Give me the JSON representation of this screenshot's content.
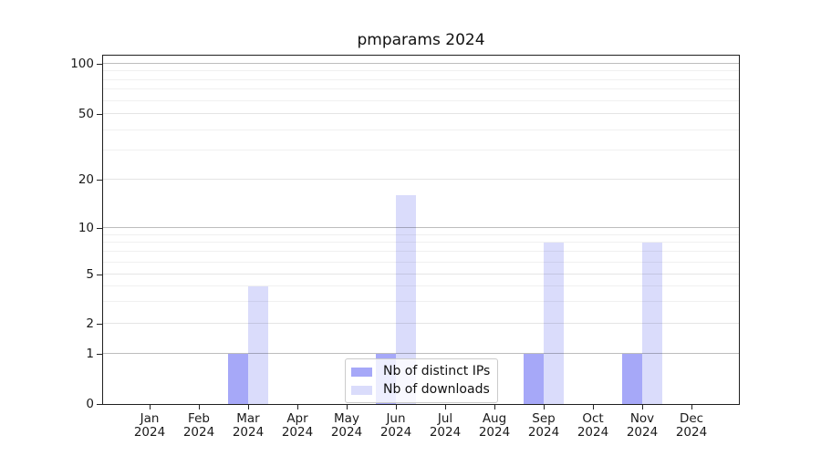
{
  "chart_data": {
    "type": "bar",
    "title": "pmparams 2024",
    "categories": [
      "Jan",
      "Feb",
      "Mar",
      "Apr",
      "May",
      "Jun",
      "Jul",
      "Aug",
      "Sep",
      "Oct",
      "Nov",
      "Dec"
    ],
    "year_label": "2024",
    "series": [
      {
        "name": "Nb of distinct IPs",
        "color": "#a6a8f8",
        "values": [
          0,
          0,
          1,
          0,
          0,
          1,
          0,
          0,
          1,
          0,
          1,
          0
        ]
      },
      {
        "name": "Nb of downloads",
        "color": "#dadcfb",
        "values": [
          0,
          0,
          4,
          0,
          0,
          16,
          0,
          0,
          8,
          0,
          8,
          0
        ]
      }
    ],
    "xlabel": "",
    "ylabel": "",
    "y_axis": {
      "scale": "symlog-like (linear 0-1, logarithmic above 1)",
      "ticks": [
        0,
        1,
        2,
        5,
        10,
        20,
        50,
        100
      ],
      "major_gridline_values": [
        1,
        10,
        100
      ],
      "minor_gridline_values": [
        3,
        4,
        6,
        7,
        8,
        9,
        30,
        40,
        60,
        70,
        80,
        90
      ],
      "ylim": [
        0,
        112
      ]
    },
    "grid": "horizontal",
    "legend": {
      "position": "lower center",
      "entries": [
        "Nb of distinct IPs",
        "Nb of downloads"
      ]
    }
  }
}
